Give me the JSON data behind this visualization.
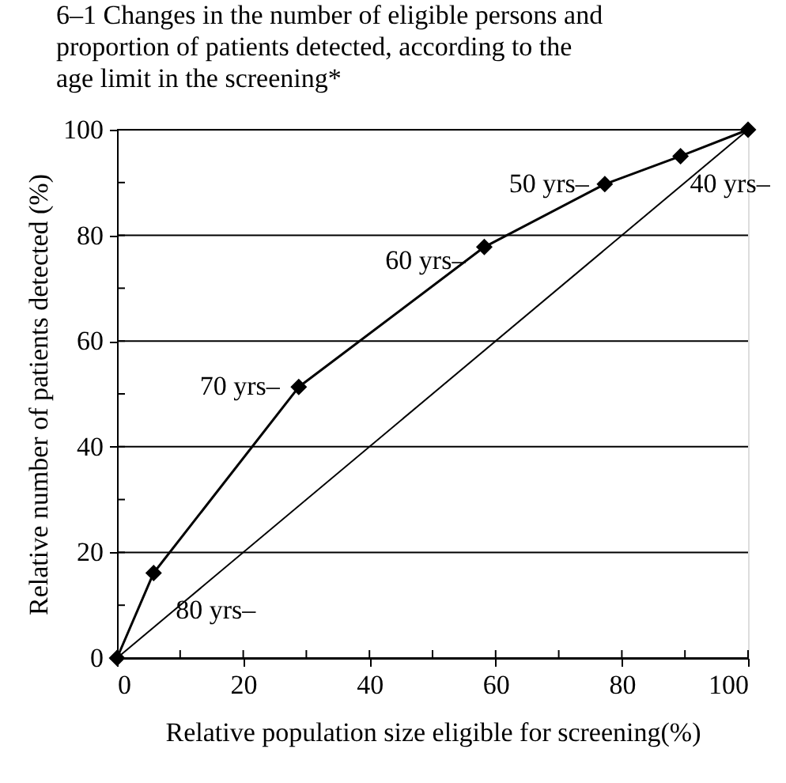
{
  "chart_data": {
    "type": "line",
    "title": "6–1 Changes in the number of eligible persons and proportion of patients detected, according to the age limit in the screening*",
    "xlabel": "Relative population size eligible for screening(%)",
    "ylabel": "Relative number of patients detected (%)",
    "series": [
      {
        "color": "#000000",
        "marker": "diamond",
        "x": [
          0,
          5.8,
          28.8,
          58.2,
          77.3,
          89.3,
          100
        ],
        "values": [
          0,
          16.1,
          51.3,
          77.8,
          89.7,
          95.0,
          100
        ]
      },
      {
        "color": "#000000",
        "marker": "none",
        "x": [
          0,
          100
        ],
        "values": [
          0,
          100
        ]
      }
    ],
    "xlim": [
      0,
      100
    ],
    "ylim": [
      0,
      100
    ],
    "xticks": [
      0,
      {
        "value": 10,
        "label": null
      },
      20,
      {
        "value": 30,
        "label": null
      },
      40,
      {
        "value": 50,
        "label": null
      },
      60,
      {
        "value": 70,
        "label": null
      },
      80,
      {
        "value": 90,
        "label": null
      },
      100
    ],
    "yticks": [
      0,
      {
        "value": 10,
        "label": null
      },
      20,
      {
        "value": 30,
        "label": null
      },
      40,
      {
        "value": 50,
        "label": null
      },
      60,
      {
        "value": 70,
        "label": null
      },
      80,
      {
        "value": 90,
        "label": null
      },
      100
    ],
    "grid": "y",
    "annotations": [
      {
        "text": "80 yrs–",
        "x": 5.8,
        "y": 16.1
      },
      {
        "text": "70 yrs–",
        "x": 28.8,
        "y": 51.3
      },
      {
        "text": "60 yrs–",
        "x": 58.2,
        "y": 77.8
      },
      {
        "text": "50 yrs–",
        "x": 77.3,
        "y": 89.7
      },
      {
        "text": "40 yrs–",
        "x": 89.3,
        "y": 95.0
      }
    ]
  }
}
